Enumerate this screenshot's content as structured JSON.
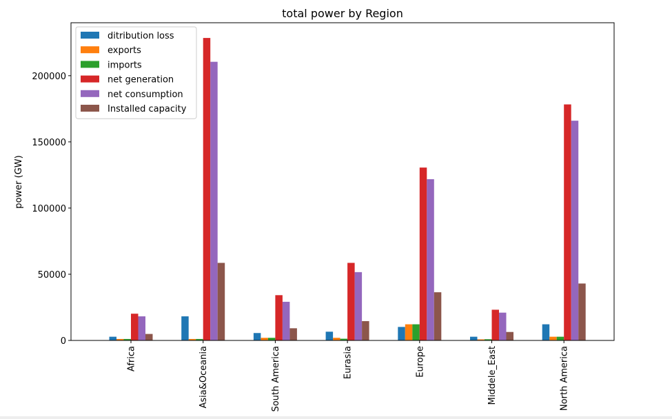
{
  "chart_data": {
    "type": "bar",
    "title": "total power by Region",
    "xlabel": "",
    "ylabel": "power (GW)",
    "ylim": [
      0,
      240000
    ],
    "yticks": [
      0,
      50000,
      100000,
      150000,
      200000
    ],
    "ytick_labels": [
      "0",
      "50000",
      "100000",
      "150000",
      "200000"
    ],
    "grid": false,
    "legend_position": "top-left",
    "categories": [
      "Africa",
      "Asia&Oceania",
      "South America",
      "Eurasia",
      "Europe",
      "Middele_East",
      "North America"
    ],
    "series": [
      {
        "name": "ditribution loss",
        "color": "#1f77b4",
        "values": [
          2800,
          18200,
          5600,
          6600,
          10200,
          2800,
          12200
        ]
      },
      {
        "name": "exports",
        "color": "#ff7f0e",
        "values": [
          1100,
          1100,
          2000,
          2000,
          12200,
          800,
          2800
        ]
      },
      {
        "name": "imports",
        "color": "#2ca02c",
        "values": [
          1100,
          1100,
          2000,
          1300,
          12200,
          900,
          2800
        ]
      },
      {
        "name": "net generation",
        "color": "#d62728",
        "values": [
          20200,
          228500,
          34200,
          58600,
          130600,
          23200,
          178300
        ]
      },
      {
        "name": "net consumption",
        "color": "#9467bd",
        "values": [
          18200,
          210500,
          29200,
          51600,
          121800,
          21000,
          166000
        ]
      },
      {
        "name": "Installed capacity",
        "color": "#8c564b",
        "values": [
          4900,
          58600,
          9200,
          14600,
          36400,
          6400,
          43000
        ]
      }
    ]
  }
}
